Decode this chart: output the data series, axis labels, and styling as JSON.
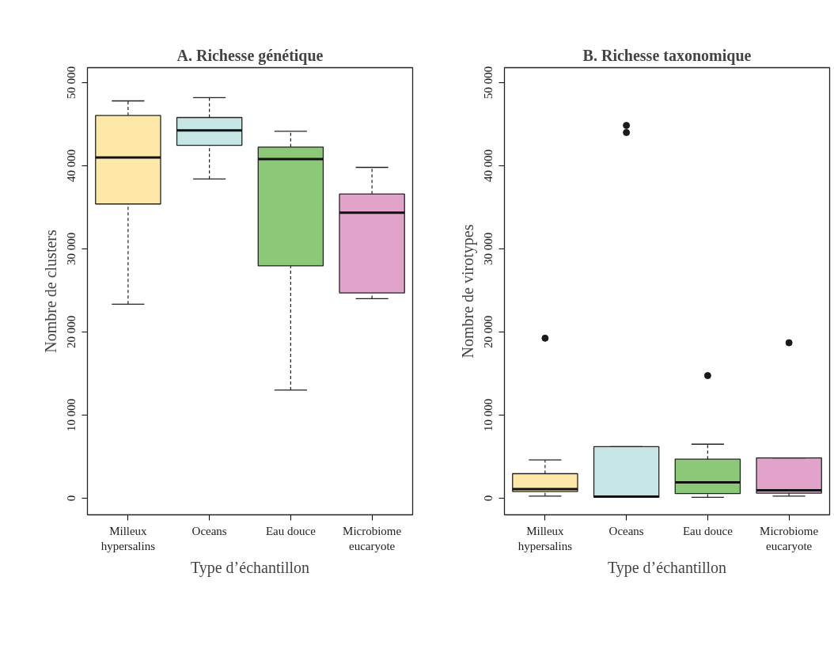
{
  "chart_data": [
    {
      "type": "box",
      "title": "A. Richesse génétique",
      "xlabel": "Type d’échantillon",
      "ylabel": "Nombre de clusters",
      "categories": [
        "Milleux\nhypersalins",
        "Oceans",
        "Eau douce",
        "Microbiome\neucaryote"
      ],
      "colors": [
        "#fee8a8",
        "#c5e6e4",
        "#8bc878",
        "#e1a3c9"
      ],
      "boxes": [
        {
          "low": 23350,
          "q1": 35400,
          "median": 41000,
          "q3": 46050,
          "high": 47800
        },
        {
          "low": 38400,
          "q1": 42450,
          "median": 44250,
          "q3": 45800,
          "high": 48200
        },
        {
          "low": 13000,
          "q1": 27950,
          "median": 40800,
          "q3": 42250,
          "high": 44150
        },
        {
          "low": 24000,
          "q1": 24700,
          "median": 34350,
          "q3": 36600,
          "high": 39800
        }
      ],
      "ylim": [
        -2000,
        51800
      ],
      "yticks": [
        0,
        {
          "value": 10000,
          "label": "10 000"
        },
        {
          "value": 20000,
          "label": "20 000"
        },
        {
          "value": 30000,
          "label": "30 000"
        },
        {
          "value": 40000,
          "label": "40 000"
        },
        {
          "value": 50000,
          "label": "50 000"
        }
      ],
      "grid": false
    },
    {
      "type": "box",
      "title": "B. Richesse taxonomique",
      "xlabel": "Type d’échantillon",
      "ylabel": "Nombre de virotypes",
      "categories": [
        "Milleux\nhypersalins",
        "Oceans",
        "Eau douce",
        "Microbiome\neucaryote"
      ],
      "colors": [
        "#fee8a8",
        "#c5e6e4",
        "#8bc878",
        "#e1a3c9"
      ],
      "boxes": [
        {
          "low": 250,
          "q1": 800,
          "median": 1100,
          "q3": 2950,
          "high": 4600,
          "outliers": [
            19250
          ]
        },
        {
          "low": 100,
          "q1": 100,
          "median": 200,
          "q3": 6200,
          "high": 6200,
          "outliers": [
            44850,
            44000
          ]
        },
        {
          "low": 100,
          "q1": 550,
          "median": 1900,
          "q3": 4700,
          "high": 6500,
          "outliers": [
            14750
          ]
        },
        {
          "low": 250,
          "q1": 600,
          "median": 950,
          "q3": 4850,
          "high": 4850,
          "outliers": [
            18700
          ]
        }
      ],
      "ylim": [
        -2000,
        51800
      ],
      "yticks": [
        0,
        {
          "value": 10000,
          "label": "10 000"
        },
        {
          "value": 20000,
          "label": "20 000"
        },
        {
          "value": 30000,
          "label": "30 000"
        },
        {
          "value": 40000,
          "label": "40 000"
        },
        {
          "value": 50000,
          "label": "50 000"
        }
      ],
      "grid": false
    }
  ]
}
